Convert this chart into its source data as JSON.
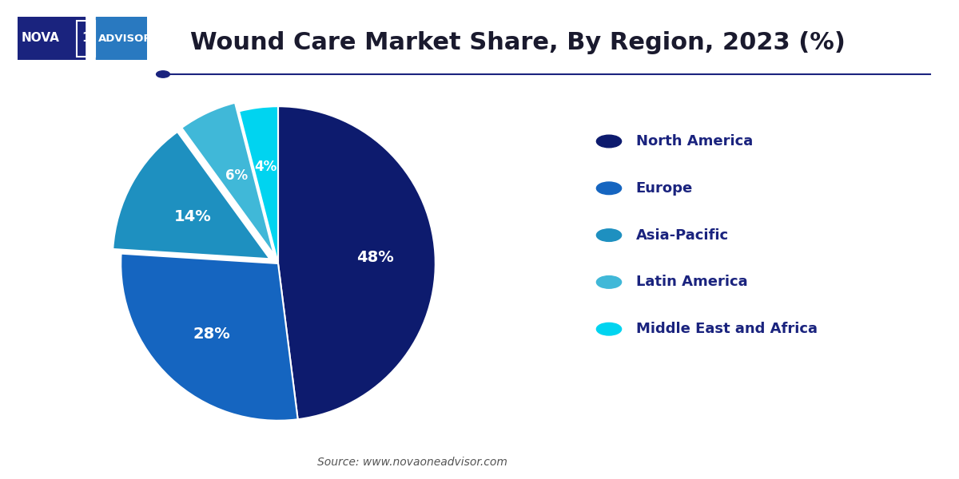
{
  "title": "Wound Care Market Share, By Region, 2023 (%)",
  "title_fontsize": 22,
  "title_color": "#1a1a2e",
  "source_text": "Source: www.novaoneadvisor.com",
  "labels": [
    "North America",
    "Europe",
    "Asia-Pacific",
    "Latin America",
    "Middle East and Africa"
  ],
  "values": [
    48,
    28,
    14,
    6,
    4
  ],
  "colors": [
    "#0d1b6e",
    "#1565c0",
    "#1e90c0",
    "#40b8d8",
    "#00d4f0"
  ],
  "explode": [
    0,
    0.0,
    0.06,
    0.06,
    0.0
  ],
  "pct_labels": [
    "48%",
    "28%",
    "14%",
    "6%",
    "4%"
  ],
  "legend_text_color": "#1a237e",
  "bg_color": "#ffffff",
  "startangle": 90,
  "separator_color": "#1a237e",
  "logo_nova_color": "#1a237e",
  "logo_advisor_color": "#2979c0"
}
